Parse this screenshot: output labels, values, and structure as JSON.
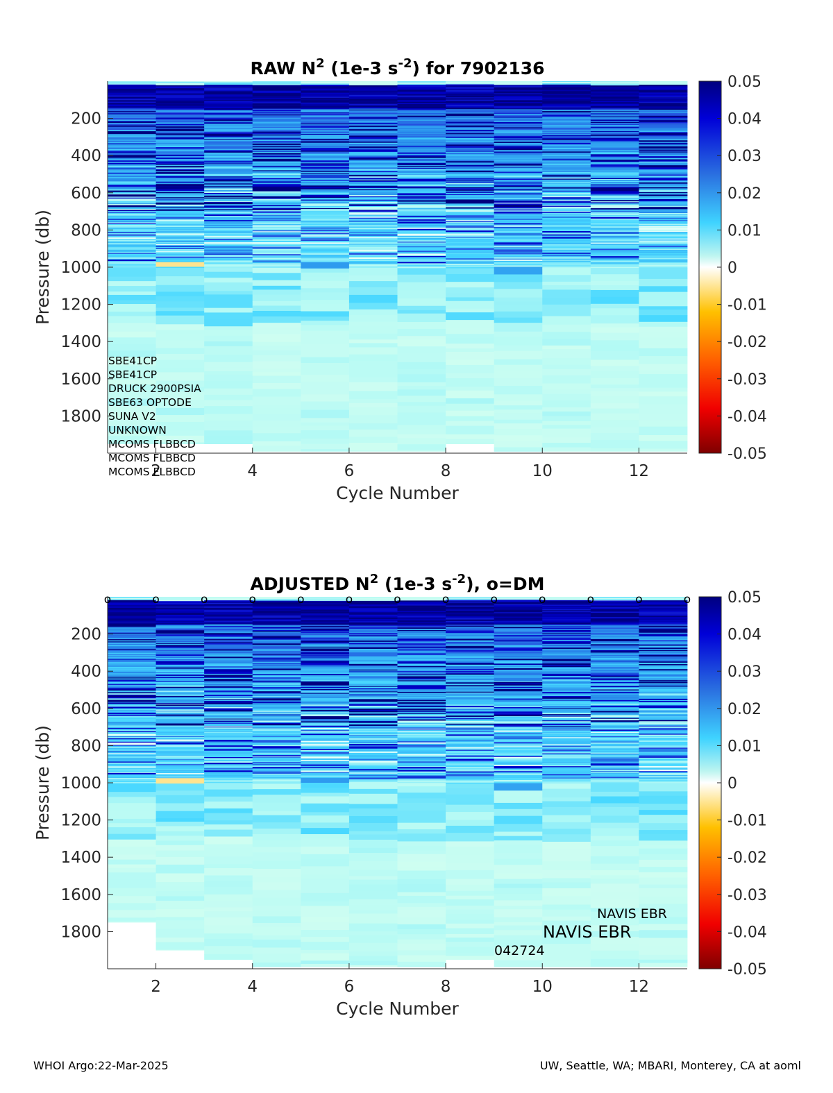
{
  "footer": {
    "left": "WHOI Argo:22-Mar-2025",
    "right": "UW, Seattle, WA; MBARI, Monterey, CA at aoml"
  },
  "chart_data": [
    {
      "type": "heatmap",
      "title_parts": {
        "pre": "RAW N",
        "sup1": "2",
        "mid": " (1e-3 s",
        "sup2": "-2",
        "post": ") for 7902136"
      },
      "xlabel": "Cycle Number",
      "ylabel": "Pressure (db)",
      "xlim": [
        1,
        13
      ],
      "ylim": [
        0,
        2000
      ],
      "y_reversed": true,
      "x_ticks": [
        2,
        4,
        6,
        8,
        10,
        12
      ],
      "y_ticks": [
        200,
        400,
        600,
        800,
        1000,
        1200,
        1400,
        1600,
        1800
      ],
      "colorbar": {
        "min": -0.05,
        "max": 0.05,
        "ticks": [
          "0.05",
          "0.04",
          "0.03",
          "0.02",
          "0.01",
          "0",
          "-0.01",
          "-0.02",
          "-0.03",
          "-0.04",
          "-0.05"
        ],
        "colormap": "jet-like with white at 0"
      },
      "cycles": [
        1,
        2,
        3,
        4,
        5,
        6,
        7,
        8,
        9,
        10,
        11,
        12
      ],
      "max_pressure": [
        1950,
        1950,
        1950,
        1990,
        1990,
        1990,
        1990,
        1950,
        1990,
        1990,
        1990,
        1990
      ],
      "notable_cells": [
        {
          "cycle": 2,
          "pmin": 975,
          "pmax": 1000,
          "value": -0.005
        },
        {
          "cycle": 5,
          "pmin": 975,
          "pmax": 1005,
          "value": 0.018
        },
        {
          "cycle": 9,
          "pmin": 1000,
          "pmax": 1050,
          "value": 0.017
        }
      ],
      "dm_markers": [],
      "sensor_labels": [
        "SBE41CP",
        "SBE41CP",
        "DRUCK 2900PSIA",
        "SBE63 OPTODE",
        "SUNA V2",
        "UNKNOWN",
        "MCOMS FLBBCD",
        "MCOMS FLBBCD",
        "MCOMS FLBBCD"
      ],
      "platform_labels": []
    },
    {
      "type": "heatmap",
      "title_parts": {
        "pre": "ADJUSTED N",
        "sup1": "2",
        "mid": " (1e-3 s",
        "sup2": "-2",
        "post": "), o=DM"
      },
      "xlabel": "Cycle Number",
      "ylabel": "Pressure (db)",
      "xlim": [
        1,
        13
      ],
      "ylim": [
        0,
        2000
      ],
      "y_reversed": true,
      "x_ticks": [
        2,
        4,
        6,
        8,
        10,
        12
      ],
      "y_ticks": [
        200,
        400,
        600,
        800,
        1000,
        1200,
        1400,
        1600,
        1800
      ],
      "colorbar": {
        "min": -0.05,
        "max": 0.05,
        "ticks": [
          "0.05",
          "0.04",
          "0.03",
          "0.02",
          "0.01",
          "0",
          "-0.01",
          "-0.02",
          "-0.03",
          "-0.04",
          "-0.05"
        ],
        "colormap": "jet-like with white at 0"
      },
      "cycles": [
        1,
        2,
        3,
        4,
        5,
        6,
        7,
        8,
        9,
        10,
        11,
        12
      ],
      "max_pressure": [
        1750,
        1900,
        1950,
        1990,
        1990,
        1990,
        1990,
        1950,
        1990,
        1990,
        1990,
        1990
      ],
      "notable_cells": [
        {
          "cycle": 2,
          "pmin": 975,
          "pmax": 1000,
          "value": -0.005
        },
        {
          "cycle": 5,
          "pmin": 975,
          "pmax": 1005,
          "value": 0.018
        },
        {
          "cycle": 9,
          "pmin": 1000,
          "pmax": 1050,
          "value": 0.017
        }
      ],
      "dm_markers": [
        1,
        2,
        3,
        4,
        5,
        6,
        7,
        8,
        9,
        10,
        11,
        12,
        13
      ],
      "sensor_labels": [],
      "platform_labels": [
        "NAVIS EBR",
        "NAVIS EBR",
        "042724"
      ]
    }
  ]
}
